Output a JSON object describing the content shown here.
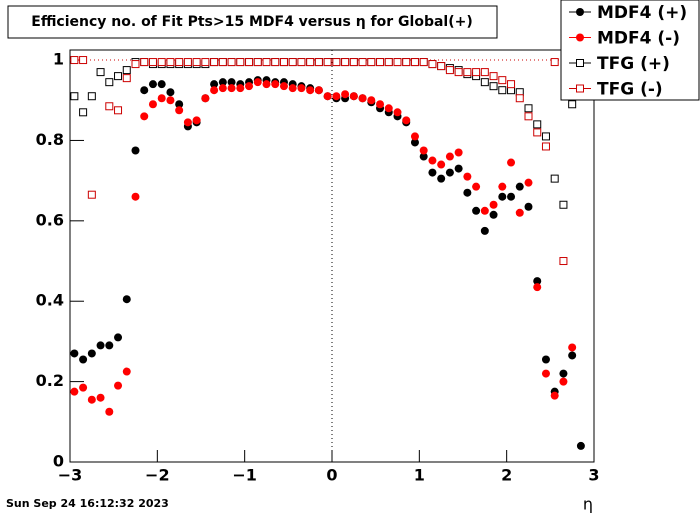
{
  "chart_data": {
    "type": "scatter",
    "title": "Efficiency no. of Fit Pts>15 MDF4 versus η for Global(+)",
    "x_label": "η",
    "timestamp": "Sun Sep 24 16:12:32 2023",
    "x": [
      -2.95,
      -2.85,
      -2.75,
      -2.65,
      -2.55,
      -2.45,
      -2.35,
      -2.25,
      -2.15,
      -2.05,
      -1.95,
      -1.85,
      -1.75,
      -1.65,
      -1.55,
      -1.45,
      -1.35,
      -1.25,
      -1.15,
      -1.05,
      -0.95,
      -0.85,
      -0.75,
      -0.65,
      -0.55,
      -0.45,
      -0.35,
      -0.25,
      -0.15,
      -0.05,
      0.05,
      0.15,
      0.25,
      0.35,
      0.45,
      0.55,
      0.65,
      0.75,
      0.85,
      0.95,
      1.05,
      1.15,
      1.25,
      1.35,
      1.45,
      1.55,
      1.65,
      1.75,
      1.85,
      1.95,
      2.05,
      2.15,
      2.25,
      2.35,
      2.45,
      2.55,
      2.65,
      2.75,
      2.85
    ],
    "series": [
      {
        "name": "MDF4 (+)",
        "color": "#000000",
        "marker": "filled-circle",
        "values": [
          0.27,
          0.255,
          0.27,
          0.29,
          0.29,
          0.31,
          0.405,
          0.775,
          0.925,
          0.94,
          0.94,
          0.92,
          0.89,
          0.835,
          0.845,
          0.905,
          0.94,
          0.945,
          0.945,
          0.94,
          0.945,
          0.95,
          0.95,
          0.945,
          0.945,
          0.94,
          0.935,
          0.93,
          0.925,
          0.91,
          0.905,
          0.905,
          0.91,
          0.905,
          0.895,
          0.88,
          0.87,
          0.86,
          0.845,
          0.795,
          0.76,
          0.72,
          0.705,
          0.72,
          0.73,
          0.67,
          0.625,
          0.575,
          0.615,
          0.66,
          0.66,
          0.685,
          0.635,
          0.45,
          0.255,
          0.175,
          0.22,
          0.265,
          0.04
        ]
      },
      {
        "name": "MDF4 (-)",
        "color": "#ff0000",
        "marker": "filled-circle",
        "values": [
          0.175,
          0.185,
          0.155,
          0.16,
          0.125,
          0.19,
          0.225,
          0.66,
          0.86,
          0.89,
          0.905,
          0.9,
          0.875,
          0.845,
          0.85,
          0.905,
          0.925,
          0.93,
          0.93,
          0.93,
          0.935,
          0.945,
          0.94,
          0.94,
          0.935,
          0.93,
          0.93,
          0.925,
          0.925,
          0.91,
          0.91,
          0.915,
          0.91,
          0.905,
          0.9,
          0.89,
          0.88,
          0.87,
          0.85,
          0.81,
          0.775,
          0.75,
          0.74,
          0.76,
          0.77,
          0.71,
          0.685,
          0.625,
          0.64,
          0.685,
          0.745,
          0.62,
          0.695,
          0.435,
          0.22,
          0.165,
          0.2,
          0.285,
          null
        ]
      },
      {
        "name": "TFG (+)",
        "color": "#000000",
        "marker": "open-square",
        "values": [
          0.91,
          0.87,
          0.91,
          0.97,
          0.945,
          0.96,
          0.975,
          0.995,
          0.995,
          0.99,
          0.99,
          0.99,
          0.99,
          0.99,
          0.99,
          0.99,
          0.995,
          0.995,
          0.995,
          0.995,
          0.995,
          0.995,
          0.995,
          0.995,
          0.995,
          0.995,
          0.995,
          0.995,
          0.995,
          0.995,
          0.995,
          0.995,
          0.995,
          0.995,
          0.995,
          0.995,
          0.995,
          0.995,
          0.995,
          0.995,
          0.995,
          0.99,
          0.985,
          0.98,
          0.975,
          0.965,
          0.96,
          0.945,
          0.935,
          0.925,
          0.925,
          0.92,
          0.88,
          0.84,
          0.81,
          0.705,
          0.64,
          0.89,
          null
        ]
      },
      {
        "name": "TFG (-)",
        "color": "#cc0000",
        "marker": "open-square",
        "values": [
          1.0,
          1.0,
          0.665,
          null,
          0.885,
          0.875,
          0.955,
          0.99,
          0.995,
          0.995,
          0.995,
          0.995,
          0.995,
          0.995,
          0.995,
          0.995,
          0.995,
          0.995,
          0.995,
          0.995,
          0.995,
          0.995,
          0.995,
          0.995,
          0.995,
          0.995,
          0.995,
          0.995,
          0.995,
          0.995,
          0.995,
          0.995,
          0.995,
          0.995,
          0.995,
          0.995,
          0.995,
          0.995,
          0.995,
          0.995,
          0.995,
          0.99,
          0.985,
          0.975,
          0.97,
          0.97,
          0.97,
          0.97,
          0.96,
          0.95,
          0.94,
          0.905,
          0.86,
          0.82,
          0.785,
          0.995,
          0.5,
          null,
          null
        ]
      }
    ],
    "xlim": [
      -3,
      3
    ],
    "xticks": [
      {
        "value": -3,
        "label": "−3"
      },
      {
        "value": -2,
        "label": "−2"
      },
      {
        "value": -1,
        "label": "−1"
      },
      0,
      1,
      2,
      3
    ],
    "ylim": [
      0,
      1.025
    ],
    "yticks": [
      0,
      0.2,
      0.4,
      0.6,
      0.8,
      1
    ],
    "legend": "top-right"
  }
}
